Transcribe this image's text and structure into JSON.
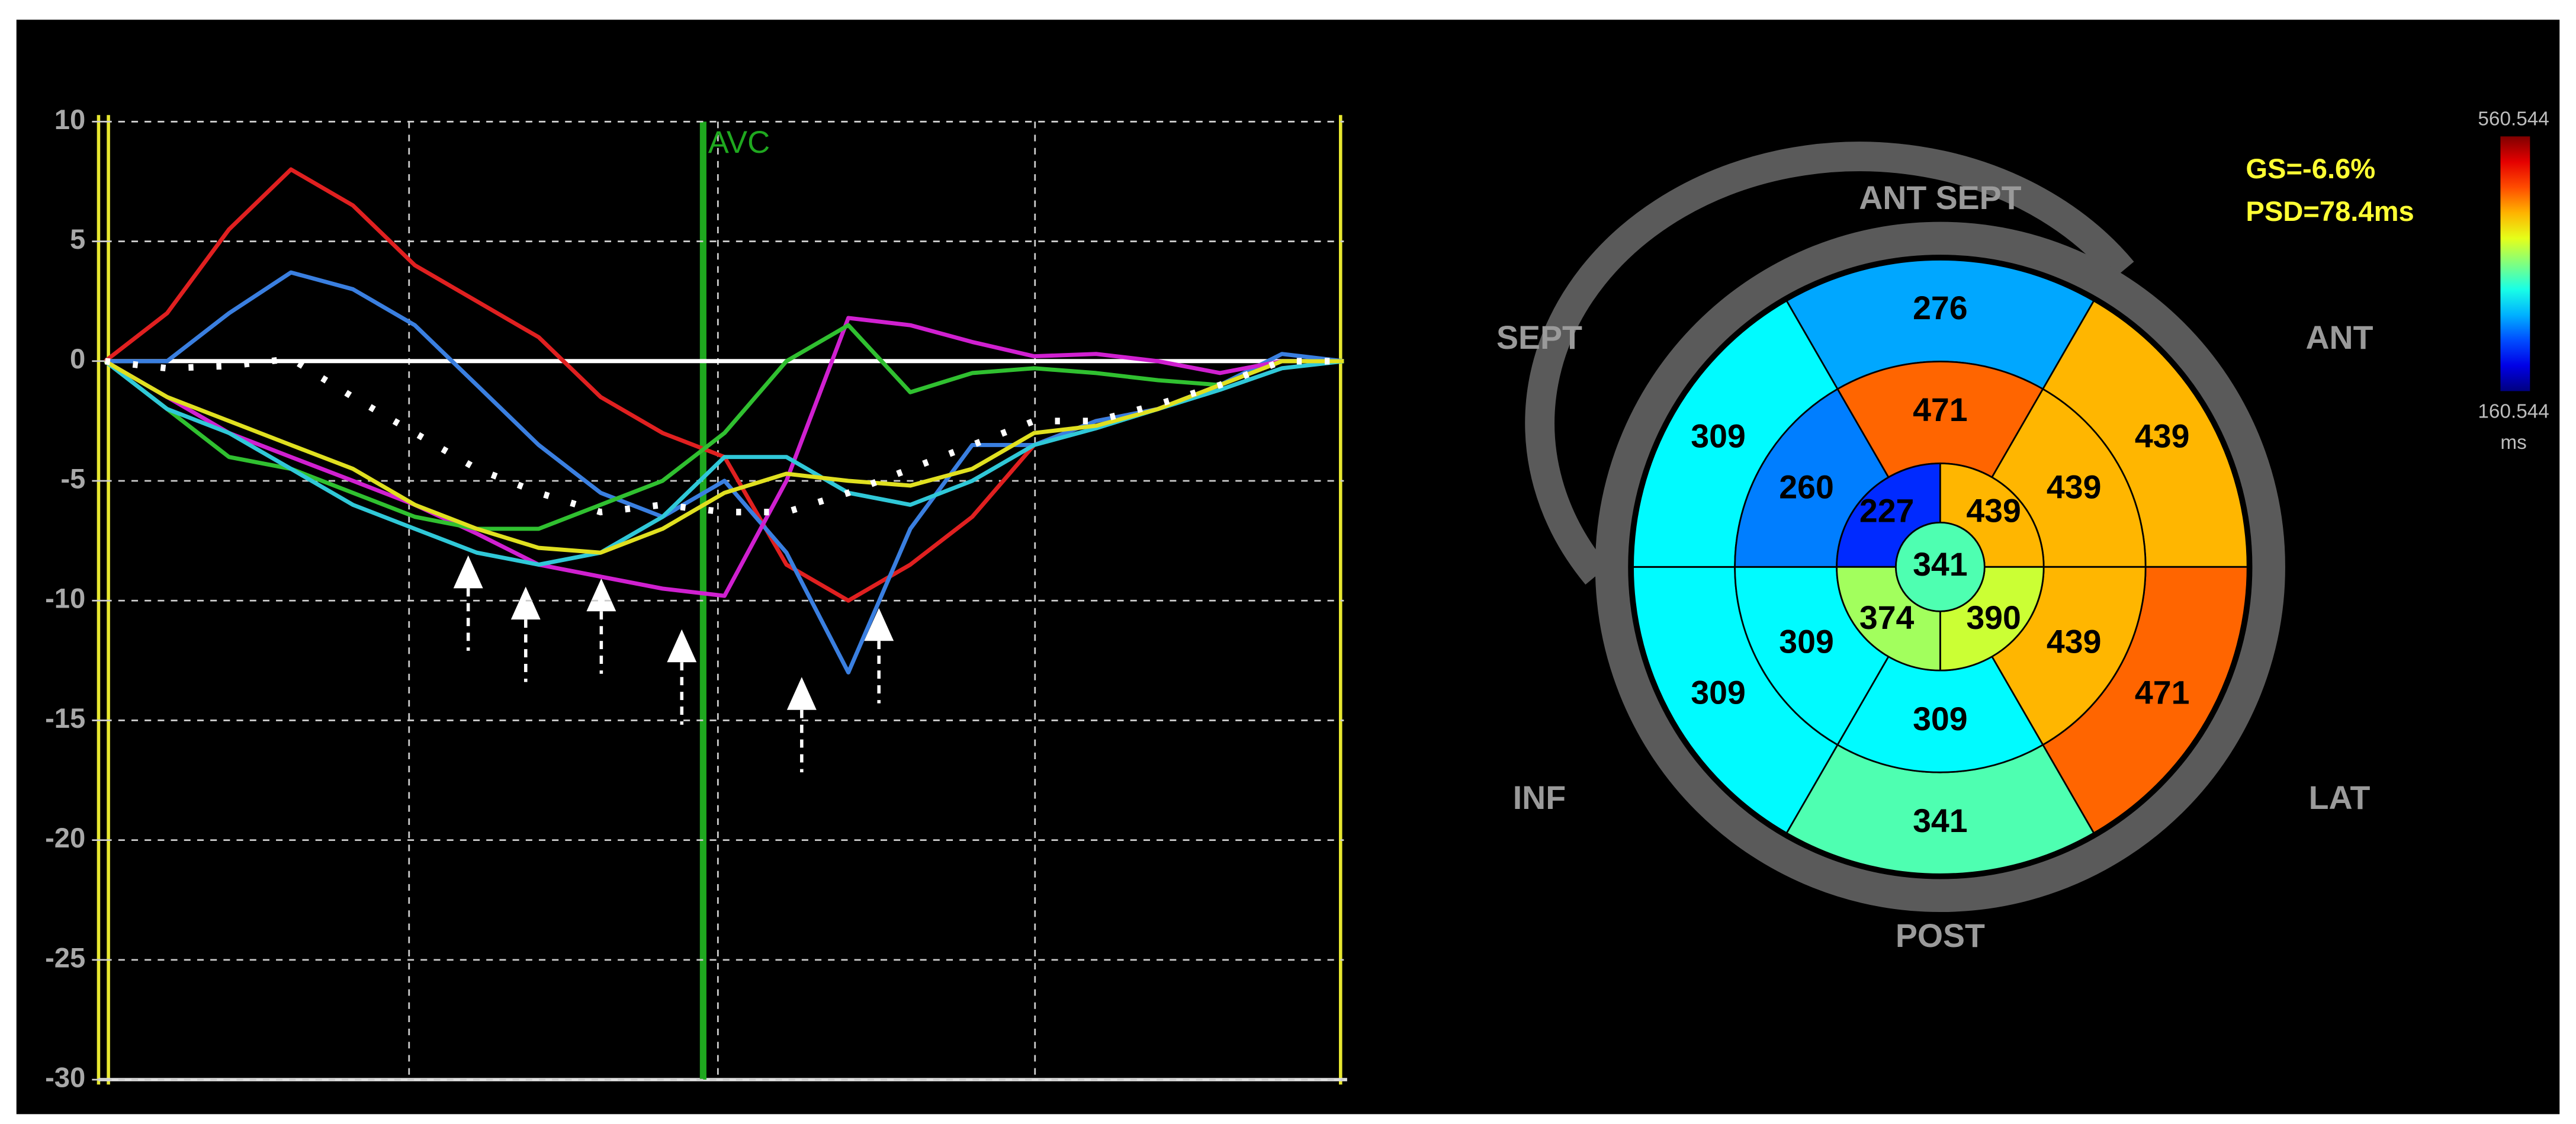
{
  "chart_data": [
    {
      "type": "line",
      "categories": [
        null,
        null,
        null,
        null,
        null,
        null,
        null,
        null,
        null,
        null,
        null,
        null,
        null,
        null,
        null,
        null,
        null,
        null,
        null,
        null,
        null
      ],
      "series": [
        {
          "color": "#e02020",
          "values": [
            0,
            2,
            5.5,
            8,
            6.5,
            4,
            2.5,
            1,
            -1.5,
            -3,
            -4,
            -8.5,
            -10,
            -8.5,
            -6.5,
            -3.5,
            -2.5,
            -2,
            -1,
            0,
            0
          ]
        },
        {
          "color": "#3a7fe0",
          "values": [
            0,
            0,
            2,
            3.7,
            3,
            1.5,
            -1,
            -3.5,
            -5.5,
            -6.5,
            -5,
            -8,
            -13,
            -7,
            -3.5,
            -3.5,
            -2.5,
            -2,
            -1,
            0.3,
            0
          ]
        },
        {
          "color": "#d020d0",
          "values": [
            0,
            -1.5,
            -3,
            -4,
            -5,
            -6,
            -7.2,
            -8.5,
            -9,
            -9.5,
            -9.8,
            -5,
            1.8,
            1.5,
            0.8,
            0.2,
            0.3,
            0,
            -0.5,
            0,
            0
          ]
        },
        {
          "color": "#30c030",
          "values": [
            0,
            -2,
            -4,
            -4.5,
            -5.5,
            -6.5,
            -7,
            -7,
            -6,
            -5,
            -3,
            0,
            1.5,
            -1.3,
            -0.5,
            -0.3,
            -0.5,
            -0.8,
            -1,
            0,
            0
          ]
        },
        {
          "color": "#30c8d8",
          "values": [
            0,
            -2,
            -3,
            -4.5,
            -6,
            -7,
            -8,
            -8.5,
            -8,
            -6.5,
            -4,
            -4,
            -5.5,
            -6,
            -5,
            -3.5,
            -2.8,
            -2,
            -1.2,
            -0.3,
            0
          ]
        },
        {
          "color": "#e0e020",
          "values": [
            0,
            -1.5,
            -2.5,
            -3.5,
            -4.5,
            -6,
            -7,
            -7.8,
            -8,
            -7,
            -5.5,
            -4.7,
            -5,
            -5.2,
            -4.5,
            -3,
            -2.7,
            -2,
            -1,
            0,
            0
          ]
        },
        {
          "color": "#ffffff",
          "dash": "dotted",
          "values": [
            0,
            -0.3,
            -0.2,
            0.1,
            -1.5,
            -3,
            -4.5,
            -5.5,
            -6.3,
            -6,
            -6.3,
            -6.3,
            -5.5,
            -4.5,
            -3.5,
            -2.5,
            -2.5,
            -1.8,
            -1,
            0,
            0
          ]
        }
      ],
      "ylim": [
        -30,
        10
      ],
      "yticks": [
        -30,
        -25,
        -20,
        -15,
        -10,
        -5,
        0,
        5,
        10
      ],
      "grid": true,
      "annotations": [
        "AVC"
      ]
    },
    {
      "type": "bullseye",
      "basal": [
        276,
        439,
        471,
        341,
        309,
        309
      ],
      "mid": [
        471,
        439,
        439,
        309,
        309,
        260
      ],
      "apical": [
        227,
        439,
        390,
        374
      ],
      "apex": 341,
      "labels": [
        "ANT SEPT",
        "ANT",
        "LAT",
        "POST",
        "INF",
        "SEPT"
      ],
      "annotations": [
        "GS=-6.6%",
        "PSD=78.4ms"
      ],
      "clim": [
        160.544,
        560.544
      ],
      "unit": "ms"
    }
  ]
}
